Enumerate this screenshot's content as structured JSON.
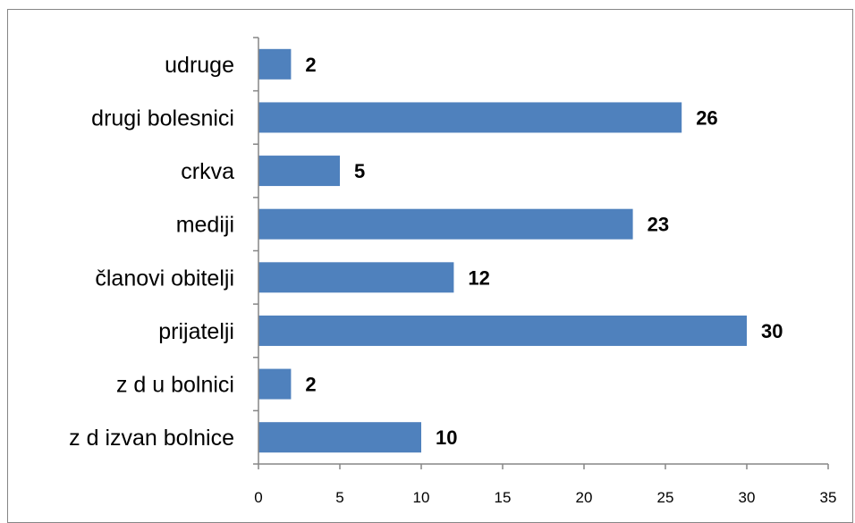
{
  "chart_data": {
    "type": "bar",
    "orientation": "horizontal",
    "categories": [
      "udruge",
      "drugi bolesnici",
      "crkva",
      "mediji",
      "članovi obitelji",
      "prijatelji",
      "z d u bolnici",
      "z d izvan bolnice"
    ],
    "values": [
      2,
      26,
      5,
      23,
      12,
      30,
      2,
      10
    ],
    "value_labels": [
      "2",
      "26",
      "5",
      "23",
      "12",
      "30",
      "2",
      "10"
    ],
    "xlim": [
      0,
      35
    ],
    "x_ticks": [
      0,
      5,
      10,
      15,
      20,
      25,
      30,
      35
    ],
    "x_tick_labels": [
      "0",
      "5",
      "10",
      "15",
      "20",
      "25",
      "30",
      "35"
    ],
    "title": "",
    "xlabel": "",
    "ylabel": "",
    "grid": false,
    "legend": "none",
    "colors": {
      "bar": "#4F81BD",
      "axis": "#868686",
      "frame": "#868686"
    }
  }
}
